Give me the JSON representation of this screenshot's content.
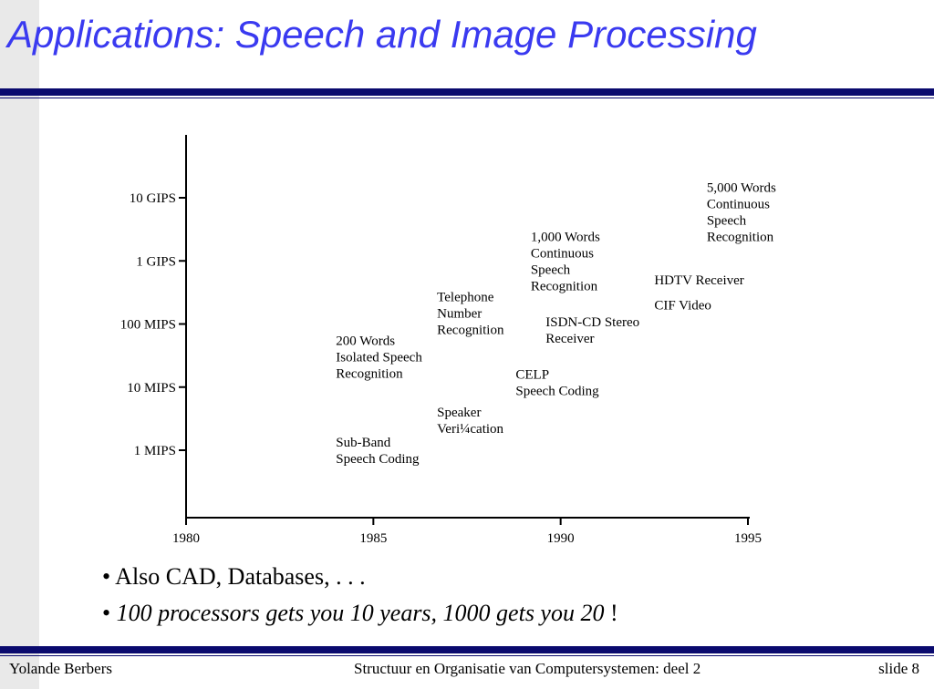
{
  "slide": {
    "title": "Applications: Speech and Image Processing"
  },
  "chart_data": {
    "type": "scatter",
    "title": "",
    "xlabel": "",
    "ylabel": "",
    "x_ticks": [
      "1980",
      "1985",
      "1990",
      "1995"
    ],
    "y_ticks": [
      "1 MIPS",
      "10 MIPS",
      "100 MIPS",
      "1 GIPS",
      "10 GIPS"
    ],
    "xlim": [
      1980,
      1995
    ],
    "ylim_log10_mips": [
      0,
      4
    ],
    "annotations": [
      {
        "lines": [
          "Sub-Band",
          "Speech Coding"
        ],
        "x": 1984,
        "y": "1 MIPS"
      },
      {
        "lines": [
          "200 Words",
          "Isolated Speech",
          "Recognition"
        ],
        "x": 1984,
        "y": "30 MIPS"
      },
      {
        "lines": [
          "Speaker",
          "Veri¼cation"
        ],
        "x": 1986.7,
        "y": "3 MIPS"
      },
      {
        "lines": [
          "Telephone",
          "Number",
          "Recognition"
        ],
        "x": 1986.7,
        "y": "150 MIPS"
      },
      {
        "lines": [
          "CELP",
          "Speech Coding"
        ],
        "x": 1988.8,
        "y": "12 MIPS"
      },
      {
        "lines": [
          "1,000 Words",
          "Continuous",
          "Speech",
          "Recognition"
        ],
        "x": 1989.2,
        "y": "1 GIPS"
      },
      {
        "lines": [
          "ISDN-CD Stereo",
          "Receiver"
        ],
        "x": 1989.6,
        "y": "80 MIPS"
      },
      {
        "lines": [
          "HDTV Receiver"
        ],
        "x": 1992.5,
        "y": "500 MIPS"
      },
      {
        "lines": [
          "CIF Video"
        ],
        "x": 1992.5,
        "y": "200 MIPS"
      },
      {
        "lines": [
          "5,000 Words",
          "Continuous",
          "Speech",
          "Recognition"
        ],
        "x": 1993.9,
        "y": "6 GIPS"
      }
    ]
  },
  "bullets": [
    {
      "text": "• Also CAD, Databases, . . ."
    },
    {
      "text": "100 processors gets you 10 years, 1000 gets you 20",
      "suffix": " !",
      "prefix": "• "
    }
  ],
  "footer": {
    "author": "Yolande Berbers",
    "course": "Structuur en Organisatie van Computersystemen: deel 2",
    "slide": "slide 8"
  }
}
